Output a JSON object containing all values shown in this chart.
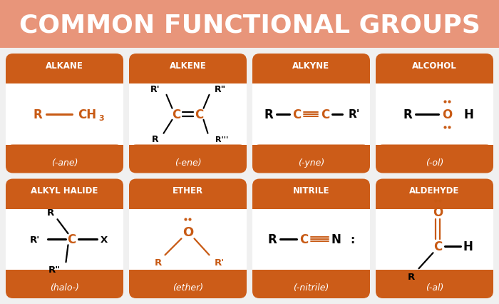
{
  "title": "COMMON FUNCTIONAL GROUPS",
  "title_bg": "#e8957a",
  "main_bg": "#f0f0f0",
  "orange": "#c85a14",
  "orange_btn": "#cc5c18",
  "white": "#ffffff",
  "groups": [
    {
      "name": "ALKANE",
      "suffix": "(-ane)"
    },
    {
      "name": "ALKENE",
      "suffix": "(-ene)"
    },
    {
      "name": "ALKYNE",
      "suffix": "(-yne)"
    },
    {
      "name": "ALCOHOL",
      "suffix": "(-ol)"
    },
    {
      "name": "ALKYL HALIDE",
      "suffix": "(halo-)"
    },
    {
      "name": "ETHER",
      "suffix": "(ether)"
    },
    {
      "name": "NITRILE",
      "suffix": "(-nitrile)"
    },
    {
      "name": "ALDEHYDE",
      "suffix": "(-al)"
    }
  ],
  "fig_w": 7.0,
  "fig_h": 4.27,
  "dpi": 100
}
